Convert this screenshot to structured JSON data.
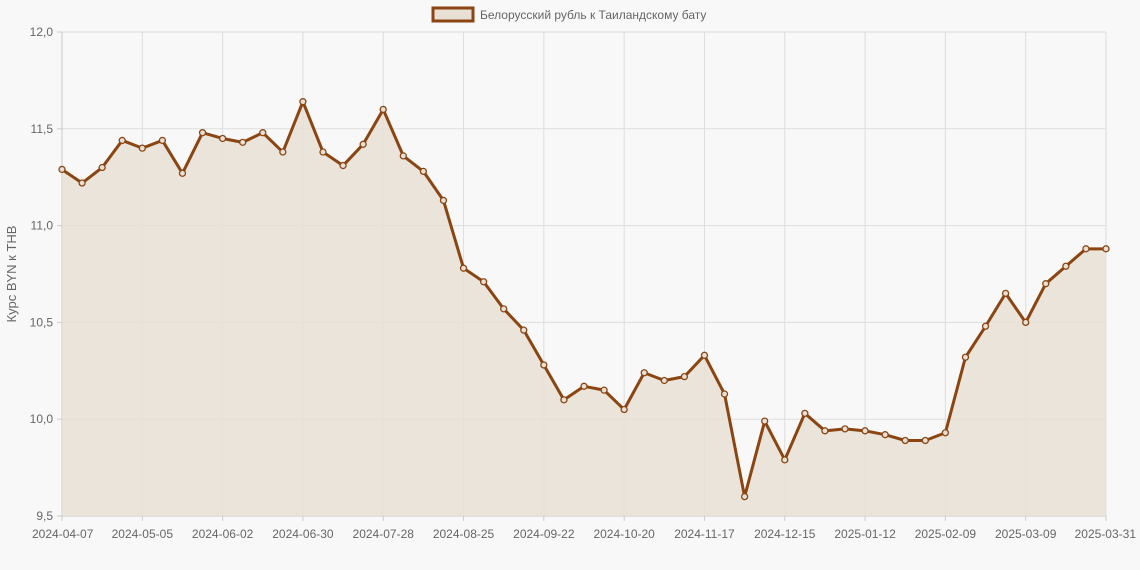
{
  "chart_data": {
    "type": "line",
    "ylabel": "Курс BYN к THB",
    "ylim": [
      9.5,
      12.0
    ],
    "y_ticks": [
      "9,5",
      "10,0",
      "10,5",
      "11,0",
      "11,5",
      "12,0"
    ],
    "x_ticks": [
      "2024-04-07",
      "2024-05-05",
      "2024-06-02",
      "2024-06-30",
      "2024-07-28",
      "2024-08-25",
      "2024-09-22",
      "2024-10-20",
      "2024-11-17",
      "2024-12-15",
      "2025-01-12",
      "2025-02-09",
      "2025-03-09",
      "2025-03-31"
    ],
    "grid": true,
    "legend_position": "top-center",
    "series": [
      {
        "name": "Белорусский рубль к Таиландскому бату",
        "color": "#8b4513",
        "fill": "#e8e0d5",
        "values": [
          11.29,
          11.22,
          11.3,
          11.44,
          11.4,
          11.44,
          11.27,
          11.48,
          11.45,
          11.43,
          11.48,
          11.38,
          11.64,
          11.38,
          11.31,
          11.42,
          11.6,
          11.36,
          11.28,
          11.13,
          10.78,
          10.71,
          10.57,
          10.46,
          10.28,
          10.1,
          10.17,
          10.15,
          10.05,
          10.24,
          10.2,
          10.22,
          10.33,
          10.13,
          9.6,
          9.99,
          9.79,
          10.03,
          9.94,
          9.95,
          9.94,
          9.92,
          9.89,
          9.89,
          9.93,
          10.32,
          10.48,
          10.65,
          10.5,
          10.7,
          10.79,
          10.88,
          10.88
        ]
      }
    ]
  }
}
